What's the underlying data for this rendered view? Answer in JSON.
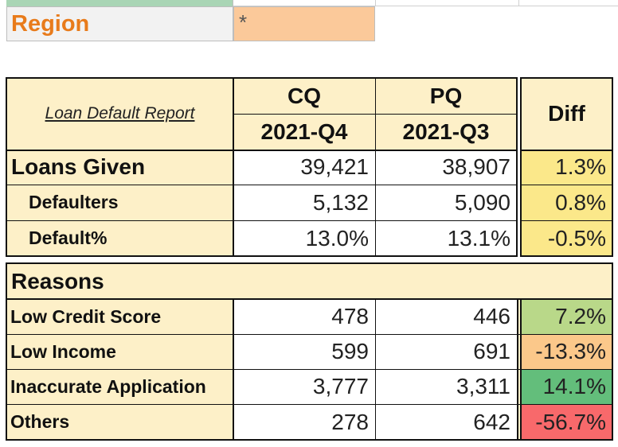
{
  "filter": {
    "label": "Region",
    "value": "*"
  },
  "report": {
    "title": "Loan Default Report",
    "cq": {
      "label": "CQ",
      "period": "2021-Q4"
    },
    "pq": {
      "label": "PQ",
      "period": "2021-Q3"
    },
    "diff_label": "Diff",
    "rows": [
      {
        "label": "Loans Given",
        "cq": "39,421",
        "pq": "38,907",
        "diff": "1.3%"
      },
      {
        "label": "Defaulters",
        "cq": "5,132",
        "pq": "5,090",
        "diff": "0.8%"
      },
      {
        "label": "Default%",
        "cq": "13.0%",
        "pq": "13.1%",
        "diff": "-0.5%"
      }
    ]
  },
  "reasons": {
    "title": "Reasons",
    "rows": [
      {
        "label": "Low Credit Score",
        "cq": "478",
        "pq": "446",
        "diff": "7.2%"
      },
      {
        "label": "Low Income",
        "cq": "599",
        "pq": "691",
        "diff": "-13.3%"
      },
      {
        "label": "Inaccurate Application",
        "cq": "3,777",
        "pq": "3,311",
        "diff": "14.1%"
      },
      {
        "label": "Others",
        "cq": "278",
        "pq": "642",
        "diff": "-56.7%"
      }
    ]
  },
  "colors": {
    "header_fill": "#fdf0c8",
    "accent_orange": "#e87b1b",
    "filter_fill": "#fbc99a",
    "diff_yellow": "#fbe88a",
    "diff_light_green": "#b9d889",
    "diff_orange": "#fbc88a",
    "diff_green": "#63be7b",
    "diff_red": "#f8696b"
  }
}
